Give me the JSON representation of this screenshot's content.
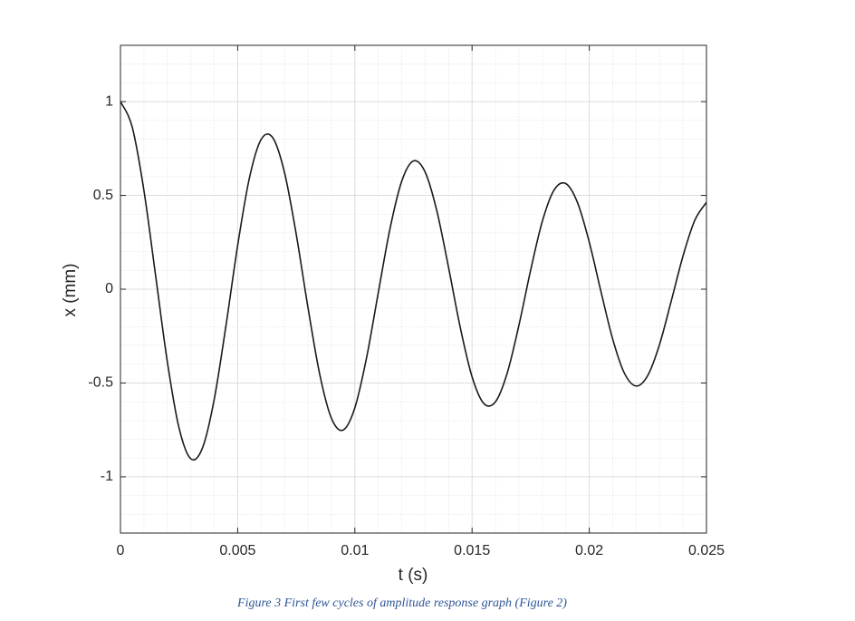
{
  "chart_data": {
    "type": "line",
    "x_label": "t (s)",
    "y_label": "x (mm)",
    "caption": "Figure 3 First few cycles of amplitude response graph (Figure 2)",
    "xlim": [
      0,
      0.025
    ],
    "ylim": [
      -1.3,
      1.3
    ],
    "xticks": [
      0,
      0.005,
      0.01,
      0.015,
      0.02,
      0.025
    ],
    "yticks": [
      -1,
      -0.5,
      0,
      0.5,
      1
    ],
    "grid": true,
    "minor_grid": true,
    "x": [
      0,
      0.0005,
      0.001,
      0.0015,
      0.002,
      0.0025,
      0.003,
      0.0035,
      0.004,
      0.0045,
      0.005,
      0.0055,
      0.006,
      0.0065,
      0.007,
      0.0075,
      0.008,
      0.0085,
      0.009,
      0.0095,
      0.01,
      0.0105,
      0.011,
      0.0115,
      0.012,
      0.0125,
      0.013,
      0.0135,
      0.014,
      0.0145,
      0.015,
      0.0155,
      0.016,
      0.0165,
      0.017,
      0.0175,
      0.018,
      0.0185,
      0.019,
      0.0195,
      0.02,
      0.0205,
      0.021,
      0.0215,
      0.022,
      0.0225,
      0.023,
      0.0235,
      0.024,
      0.0245,
      0.025
    ],
    "series": [
      {
        "color": "#1a1a1a",
        "values": [
          1.0,
          0.865,
          0.527,
          0.072,
          -0.387,
          -0.74,
          -0.904,
          -0.846,
          -0.587,
          -0.195,
          0.233,
          0.592,
          0.798,
          0.807,
          0.621,
          0.292,
          -0.098,
          -0.453,
          -0.688,
          -0.751,
          -0.632,
          -0.365,
          -0.018,
          0.323,
          0.576,
          0.684,
          0.624,
          0.416,
          0.114,
          -0.206,
          -0.467,
          -0.609,
          -0.6,
          -0.447,
          -0.192,
          0.102,
          0.363,
          0.529,
          0.563,
          0.461,
          0.251,
          -0.013,
          -0.266,
          -0.448,
          -0.516,
          -0.459,
          -0.294,
          -0.062,
          0.177,
          0.367,
          0.463
        ]
      }
    ]
  }
}
